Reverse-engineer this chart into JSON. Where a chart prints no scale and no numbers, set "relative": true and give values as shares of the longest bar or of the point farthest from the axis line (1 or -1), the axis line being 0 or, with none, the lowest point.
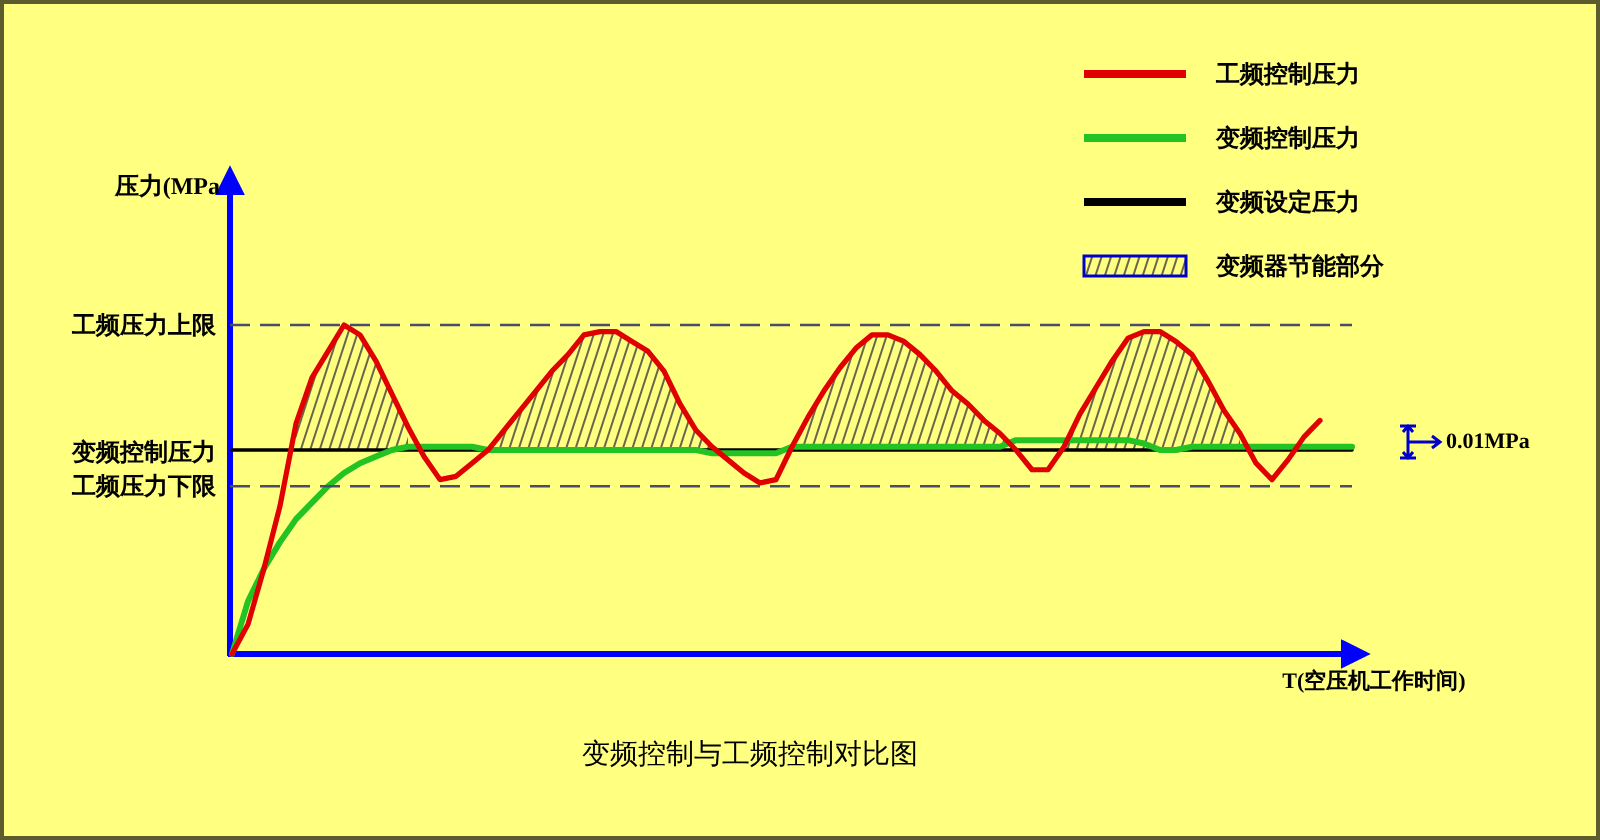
{
  "chart_data": {
    "type": "line",
    "title": "变频控制与工频控制对比图",
    "xlabel": "T(空压机工作时间)",
    "relative": true,
    "legend": "top right",
    "categories": [
      null,
      null,
      null,
      null,
      null,
      null,
      null,
      null,
      null,
      null,
      null,
      null,
      null,
      null,
      null,
      null,
      null,
      null,
      null,
      null,
      null,
      null,
      null,
      null,
      null,
      null,
      null,
      null,
      null,
      null,
      null,
      null,
      null,
      null,
      null,
      null,
      null,
      null,
      null,
      null,
      null,
      null,
      null,
      null,
      null,
      null,
      null,
      null,
      null,
      null,
      null,
      null,
      null,
      null,
      null,
      null,
      null,
      null,
      null,
      null,
      null,
      null,
      null,
      null,
      null,
      null,
      null,
      null,
      null,
      null,
      null
    ],
    "series": [
      {
        "name": "工频控制压力",
        "color": "#e00000",
        "values": [
          0,
          0.09,
          0.26,
          0.45,
          0.7,
          0.84,
          0.92,
          1.0,
          0.97,
          0.89,
          0.79,
          0.69,
          0.6,
          0.53,
          0.54,
          0.58,
          0.62,
          0.68,
          0.74,
          0.8,
          0.86,
          0.91,
          0.97,
          0.98,
          0.98,
          0.95,
          0.92,
          0.86,
          0.76,
          0.68,
          0.63,
          0.59,
          0.55,
          0.52,
          0.53,
          0.63,
          0.72,
          0.8,
          0.87,
          0.93,
          0.97,
          0.97,
          0.95,
          0.91,
          0.86,
          0.8,
          0.76,
          0.71,
          0.67,
          0.62,
          0.56,
          0.56,
          0.63,
          0.73,
          0.81,
          0.89,
          0.96,
          0.98,
          0.98,
          0.95,
          0.91,
          0.83,
          0.74,
          0.67,
          0.58,
          0.53,
          0.59,
          0.66,
          0.71,
          null,
          null
        ]
      },
      {
        "name": "变频控制压力",
        "color": "#22c322",
        "values": [
          0,
          0.16,
          0.26,
          0.34,
          0.41,
          0.46,
          0.51,
          0.55,
          0.58,
          0.6,
          0.62,
          0.63,
          0.63,
          0.63,
          0.63,
          0.63,
          0.62,
          0.62,
          0.62,
          0.62,
          0.62,
          0.62,
          0.62,
          0.62,
          0.62,
          0.62,
          0.62,
          0.62,
          0.62,
          0.62,
          0.61,
          0.61,
          0.61,
          0.61,
          0.61,
          0.63,
          0.63,
          0.63,
          0.63,
          0.63,
          0.63,
          0.63,
          0.63,
          0.63,
          0.63,
          0.63,
          0.63,
          0.63,
          0.63,
          0.65,
          0.65,
          0.65,
          0.65,
          0.65,
          0.65,
          0.65,
          0.65,
          0.64,
          0.62,
          0.62,
          0.63,
          0.63,
          0.63,
          0.63,
          0.63,
          0.63,
          0.63,
          0.63,
          0.63,
          0.63,
          0.63
        ]
      },
      {
        "name": "变频设定压力",
        "color": "#000000",
        "values": [
          0.62,
          0.62,
          0.62,
          0.62,
          0.62,
          0.62,
          0.62,
          0.62,
          0.62,
          0.62,
          0.62,
          0.62,
          0.62,
          0.62,
          0.62,
          0.62,
          0.62,
          0.62,
          0.62,
          0.62,
          0.62,
          0.62,
          0.62,
          0.62,
          0.62,
          0.62,
          0.62,
          0.62,
          0.62,
          0.62,
          0.62,
          0.62,
          0.62,
          0.62,
          0.62,
          0.62,
          0.62,
          0.62,
          0.62,
          0.62,
          0.62,
          0.62,
          0.62,
          0.62,
          0.62,
          0.62,
          0.62,
          0.62,
          0.62,
          0.62,
          0.62,
          0.62,
          0.62,
          0.62,
          0.62,
          0.62,
          0.62,
          0.62,
          0.62,
          0.62,
          0.62,
          0.62,
          0.62,
          0.62,
          0.62,
          0.62,
          0.62,
          0.62,
          0.62,
          0.62,
          0.62
        ]
      },
      {
        "name": "变频器节能部分",
        "type": "area",
        "color": "#404040",
        "values": [
          null,
          null,
          null,
          null,
          0.7,
          0.84,
          0.92,
          1.0,
          0.97,
          0.89,
          0.79,
          0.69,
          null,
          null,
          null,
          null,
          0.62,
          0.68,
          0.74,
          0.8,
          0.86,
          0.91,
          0.97,
          0.98,
          0.98,
          0.95,
          0.92,
          0.86,
          0.76,
          0.68,
          0.63,
          null,
          null,
          null,
          null,
          0.63,
          0.72,
          0.8,
          0.87,
          0.93,
          0.97,
          0.97,
          0.95,
          0.91,
          0.86,
          0.8,
          0.76,
          0.71,
          0.67,
          0.62,
          null,
          null,
          0.63,
          0.73,
          0.81,
          0.89,
          0.96,
          0.98,
          0.98,
          0.95,
          0.91,
          0.83,
          0.74,
          0.67,
          null,
          null,
          null,
          null,
          null,
          null,
          null
        ]
      }
    ],
    "ref_lines": [
      {
        "axis": "y",
        "value": 1.0,
        "label": "工频压力上限",
        "color": "#4b4b6e",
        "line_style": "dashed"
      },
      {
        "axis": "y",
        "value": 0.51,
        "label": "工频压力下限",
        "color": "#4b4b6e",
        "line_style": "dashed"
      }
    ],
    "annotations": [
      "压力(MPa",
      "变频控制压力",
      "0.01MPa"
    ]
  }
}
